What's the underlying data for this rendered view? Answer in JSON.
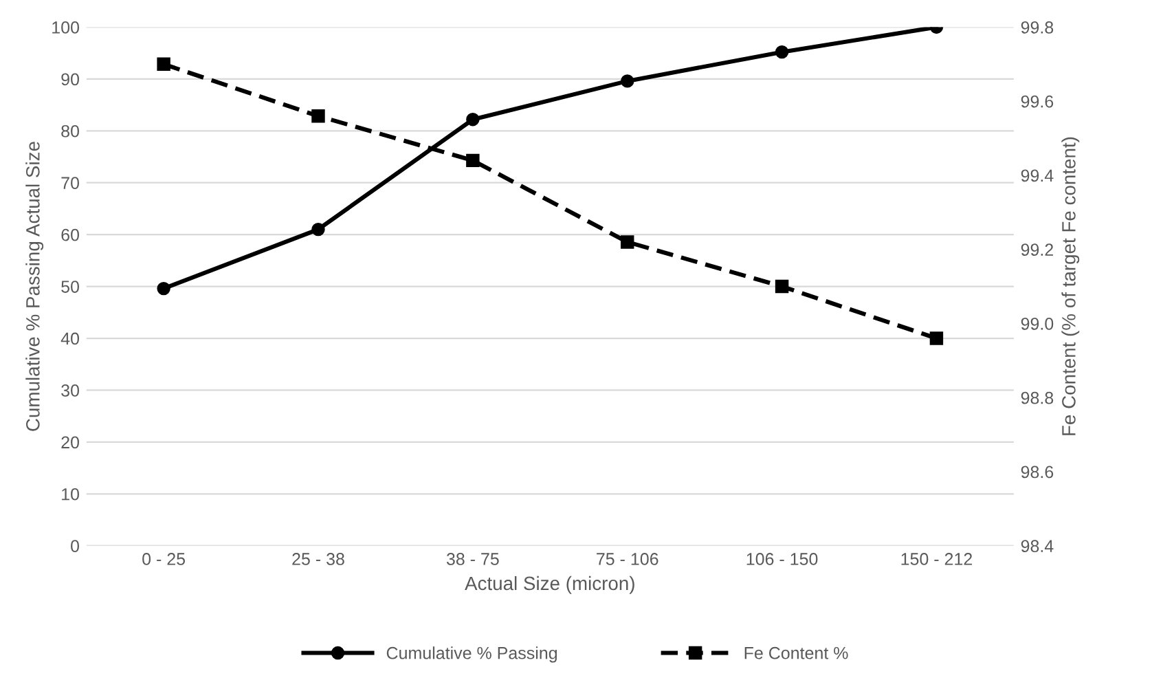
{
  "chart_data": {
    "type": "line",
    "xlabel": "Actual Size (micron)",
    "ylabel": "Cumulative % Passing Actual Size",
    "y2label": "Fe Content (% of target Fe content)",
    "categories": [
      "0 - 25",
      "25 - 38",
      "38 - 75",
      "75 - 106",
      "106 - 150",
      "150 - 212"
    ],
    "series": [
      {
        "name": "Cumulative % Passing",
        "color": "#000000",
        "marker": "circle",
        "line_style": "solid",
        "values": [
          49.6,
          61,
          82.2,
          89.6,
          95.2,
          100
        ]
      },
      {
        "name": "Fe Content %",
        "color": "#000000",
        "marker": "square",
        "line_style": "dashed",
        "axis": "y2",
        "values": [
          99.7,
          99.56,
          99.44,
          99.22,
          99.1,
          98.96
        ]
      }
    ],
    "ylim": [
      0,
      100
    ],
    "yticks": [
      0,
      10,
      20,
      30,
      40,
      50,
      60,
      70,
      80,
      90,
      100
    ],
    "y2lim": [
      98.4,
      99.8
    ],
    "y2ticks": [
      {
        "value": 98.4,
        "label": "98.4"
      },
      {
        "value": 98.6,
        "label": "98.6"
      },
      {
        "value": 98.8,
        "label": "98.8"
      },
      {
        "value": 99.0,
        "label": "99.0"
      },
      {
        "value": 99.2,
        "label": "99.2"
      },
      {
        "value": 99.4,
        "label": "99.4"
      },
      {
        "value": 99.6,
        "label": "99.6"
      },
      {
        "value": 99.8,
        "label": "99.8"
      }
    ],
    "grid": "y",
    "legend": "bottom"
  }
}
